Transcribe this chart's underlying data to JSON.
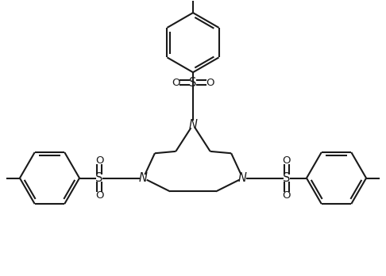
{
  "background_color": "#ffffff",
  "line_color": "#1a1a1a",
  "line_width": 1.5,
  "font_size": 10.5,
  "figsize": [
    4.86,
    3.48
  ],
  "dpi": 100,
  "xlim": [
    0,
    10
  ],
  "ylim": [
    0,
    7.2
  ]
}
